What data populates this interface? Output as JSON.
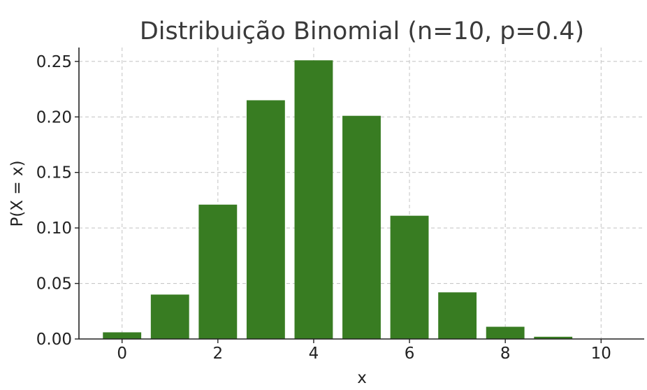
{
  "chart_data": {
    "type": "bar",
    "title": "Distribuição Binomial (n=10, p=0.4)",
    "xlabel": "x",
    "ylabel": "P(X = x)",
    "categories": [
      0,
      1,
      2,
      3,
      4,
      5,
      6,
      7,
      8,
      9,
      10
    ],
    "values": [
      0.006,
      0.04,
      0.121,
      0.215,
      0.251,
      0.201,
      0.111,
      0.042,
      0.011,
      0.002,
      0.0001
    ],
    "xlim": [
      -0.9,
      10.9
    ],
    "ylim": [
      0,
      0.2625
    ],
    "xticks": [
      0,
      2,
      4,
      6,
      8,
      10
    ],
    "xtick_labels": [
      "0",
      "2",
      "4",
      "6",
      "8",
      "10"
    ],
    "yticks": [
      0.0,
      0.05,
      0.1,
      0.15,
      0.2,
      0.25
    ],
    "ytick_labels": [
      "0.00",
      "0.05",
      "0.10",
      "0.15",
      "0.20",
      "0.25"
    ],
    "grid": true,
    "bar_color": "#387c22",
    "grid_color": "#c8c8c8"
  }
}
